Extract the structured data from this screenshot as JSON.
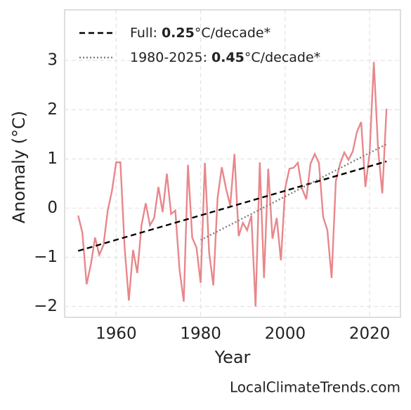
{
  "chart_data": {
    "type": "line",
    "x_label": "Year",
    "y_label": "Anomaly (°C)",
    "source": "LocalClimateTrends.com",
    "xlim": [
      1947.8,
      2027.3
    ],
    "ylim": [
      -2.22,
      4.03
    ],
    "xticks": [
      1960,
      1980,
      2000,
      2020
    ],
    "yticks": [
      {
        "value": -2,
        "label": "−2"
      },
      {
        "value": -1,
        "label": "−1"
      },
      0,
      1,
      2,
      3
    ],
    "grid": true,
    "legend_position": "upper left",
    "x": [
      1951,
      1952,
      1953,
      1954,
      1955,
      1956,
      1957,
      1958,
      1959,
      1960,
      1961,
      1962,
      1963,
      1964,
      1965,
      1966,
      1967,
      1968,
      1969,
      1970,
      1971,
      1972,
      1973,
      1974,
      1975,
      1976,
      1977,
      1978,
      1979,
      1980,
      1981,
      1982,
      1983,
      1984,
      1985,
      1986,
      1987,
      1988,
      1989,
      1990,
      1991,
      1992,
      1993,
      1994,
      1995,
      1996,
      1997,
      1998,
      1999,
      2000,
      2001,
      2002,
      2003,
      2004,
      2005,
      2006,
      2007,
      2008,
      2009,
      2010,
      2011,
      2012,
      2013,
      2014,
      2015,
      2016,
      2017,
      2018,
      2019,
      2020,
      2021,
      2022,
      2023,
      2024
    ],
    "series": [
      {
        "color": "#e8878b",
        "values": [
          -0.15,
          -0.5,
          -1.55,
          -1.15,
          -0.6,
          -0.95,
          -0.75,
          -0.05,
          0.35,
          0.93,
          0.93,
          -0.8,
          -1.88,
          -0.85,
          -1.32,
          -0.35,
          0.1,
          -0.35,
          -0.2,
          0.43,
          -0.08,
          0.7,
          -0.12,
          -0.05,
          -1.25,
          -1.9,
          0.88,
          -0.6,
          -0.8,
          -1.52,
          0.92,
          -0.9,
          -1.57,
          0.2,
          0.83,
          0.4,
          0.05,
          1.1,
          -0.57,
          -0.3,
          -0.45,
          -0.15,
          -2.0,
          0.93,
          -1.42,
          0.8,
          -0.62,
          -0.2,
          -1.06,
          0.4,
          0.8,
          0.82,
          0.92,
          0.4,
          0.18,
          0.9,
          1.1,
          0.92,
          -0.18,
          -0.45,
          -1.42,
          0.55,
          0.9,
          1.13,
          0.98,
          1.15,
          1.55,
          1.75,
          0.43,
          1.12,
          2.97,
          1.2,
          0.3,
          2.02
        ]
      }
    ],
    "trends": [
      {
        "label": "Full:",
        "rate": 0.25,
        "unit": "°C/decade*",
        "color": "#000000",
        "dash": "dashed",
        "x": [
          1951,
          2024
        ],
        "values": [
          -0.87,
          0.95
        ]
      },
      {
        "label": "1980-2025:",
        "rate": 0.45,
        "unit": "°C/decade*",
        "color": "#808080",
        "dash": "dotted",
        "x": [
          1980,
          2024
        ],
        "values": [
          -0.65,
          1.3
        ]
      }
    ]
  }
}
